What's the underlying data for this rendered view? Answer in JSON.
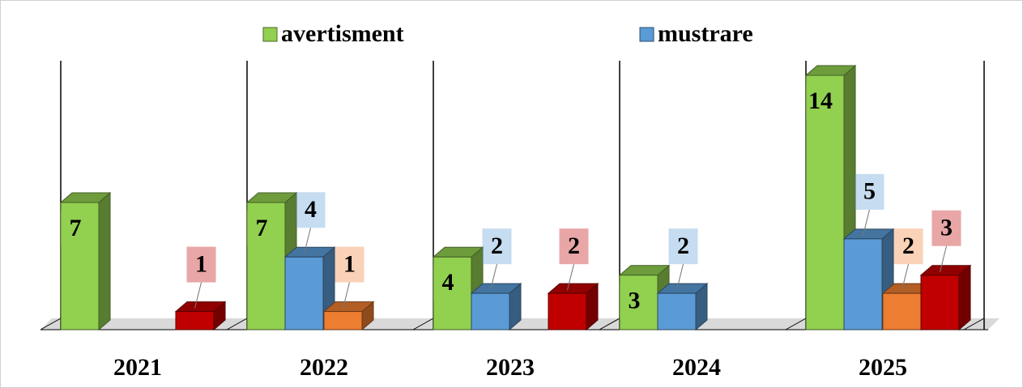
{
  "chart_data": {
    "type": "bar3d",
    "categories": [
      "2021",
      "2022",
      "2023",
      "2024",
      "2025"
    ],
    "series": [
      {
        "name": "avertisment",
        "color": "#92d050",
        "values": [
          7,
          7,
          4,
          3,
          14
        ]
      },
      {
        "name": "mustrare",
        "color": "#5b9bd5",
        "values": [
          null,
          4,
          2,
          2,
          5
        ]
      },
      {
        "color": "#ed7d31",
        "values": [
          null,
          1,
          null,
          null,
          2
        ]
      },
      {
        "color": "#c00000",
        "values": [
          1,
          null,
          2,
          null,
          3
        ]
      }
    ],
    "legend": "top"
  }
}
